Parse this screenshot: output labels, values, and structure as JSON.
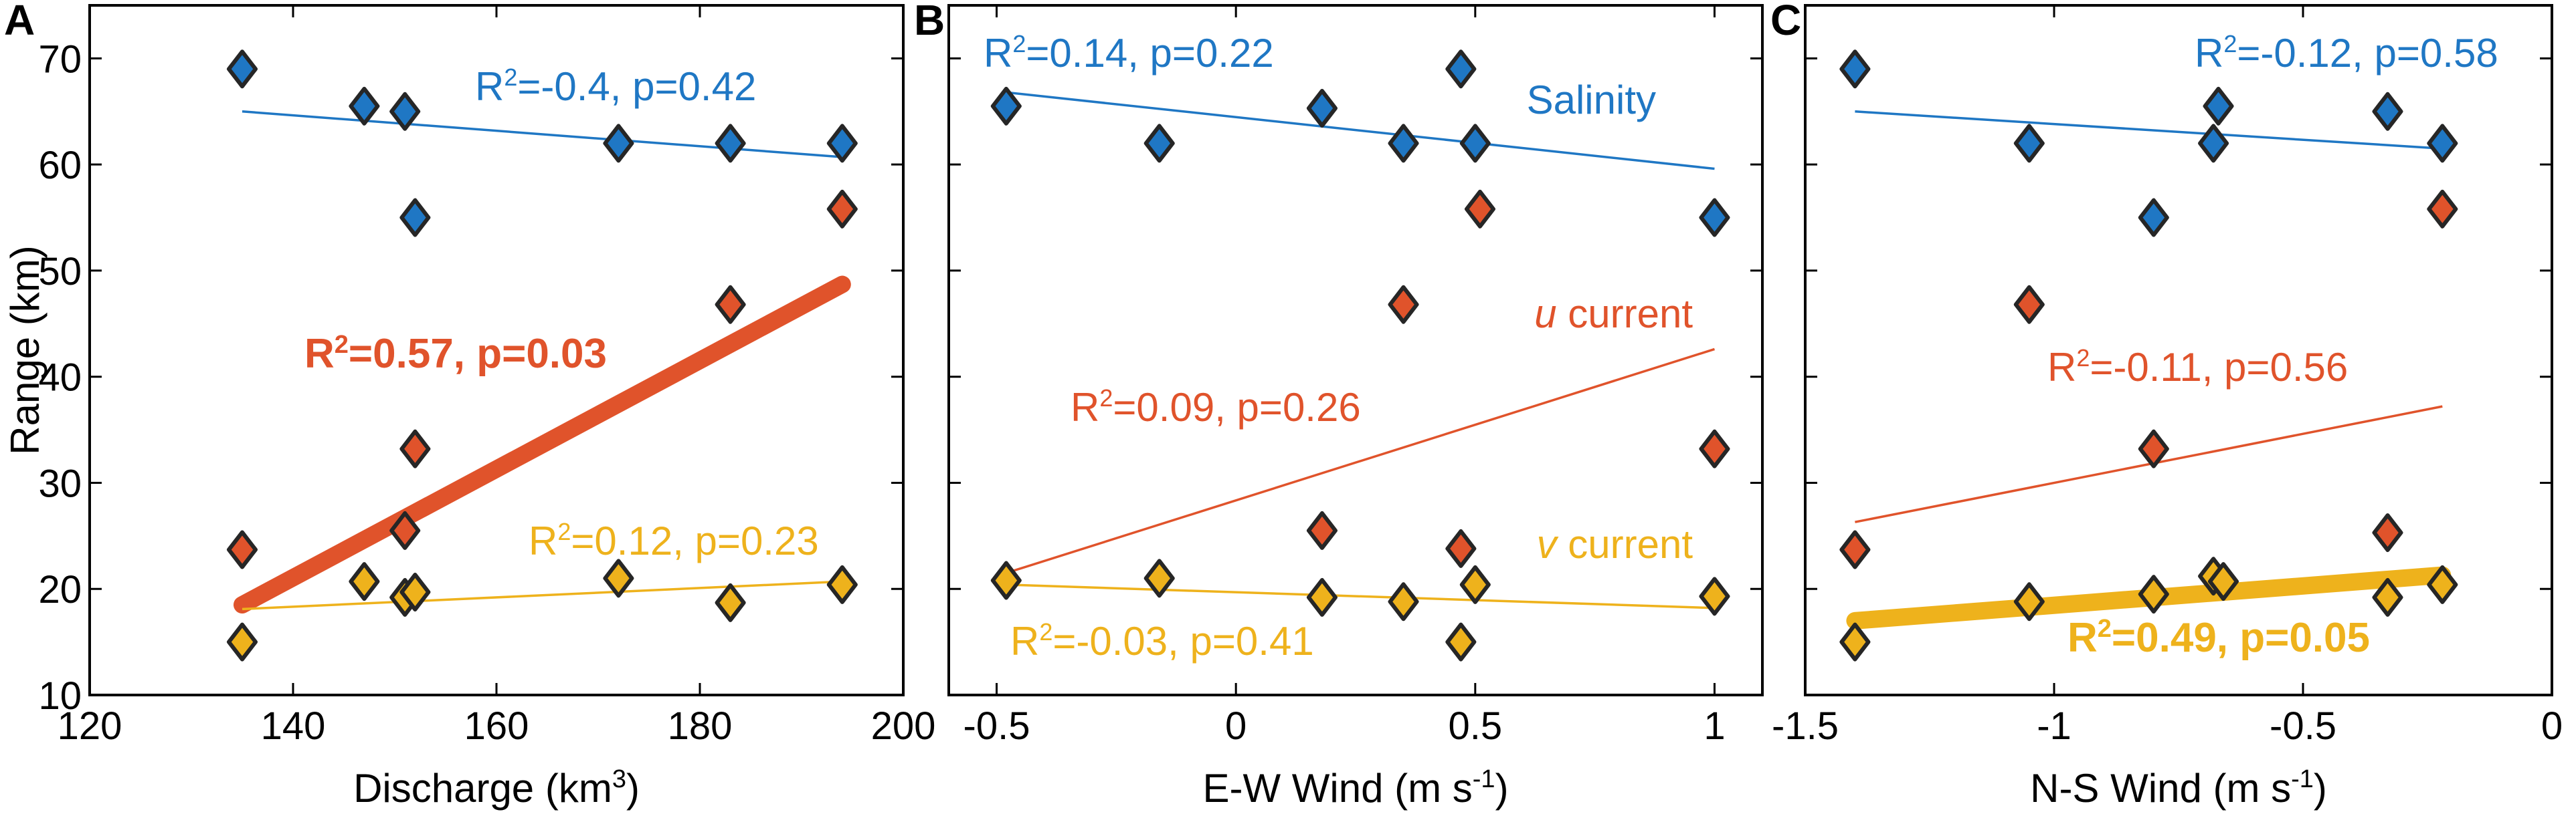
{
  "colors": {
    "blue": "#1f77c4",
    "orange": "#e0532b",
    "yellow": "#eeb21c",
    "axis": "#000000"
  },
  "shared": {
    "ylabel": "Range (km)",
    "ylim": [
      10,
      75
    ],
    "yticks": [
      10,
      20,
      30,
      40,
      50,
      60,
      70
    ]
  },
  "chart_data": [
    {
      "panel": "A",
      "type": "scatter",
      "xlabel": "Discharge (km",
      "xlabel_sup": "3",
      "xlabel_end": ")",
      "xlim": [
        120,
        200
      ],
      "xticks": [
        "120",
        "140",
        "160",
        "180",
        "200"
      ],
      "xtick_values": [
        120,
        140,
        160,
        180,
        200
      ],
      "series": [
        {
          "name": "Salinity",
          "color": "blue",
          "x": [
            135,
            147,
            151,
            152,
            172,
            183,
            194
          ],
          "y": [
            69,
            65.5,
            65,
            55,
            62,
            62,
            62
          ],
          "fit": {
            "x": [
              135,
              194
            ],
            "y": [
              65,
              60.7
            ],
            "weight": "thin"
          },
          "stat": {
            "r2": "-0.4",
            "p": "0.42"
          }
        },
        {
          "name": "u current",
          "color": "orange",
          "x": [
            135,
            151,
            152,
            183,
            194
          ],
          "y": [
            23.7,
            25.5,
            33.2,
            46.8,
            55.8
          ],
          "fit": {
            "x": [
              135,
              194
            ],
            "y": [
              18.5,
              48.7
            ],
            "weight": "thick"
          },
          "stat": {
            "r2": "0.57",
            "p": "0.03"
          }
        },
        {
          "name": "v current",
          "color": "yellow",
          "x": [
            135,
            147,
            151,
            152,
            172,
            183,
            194
          ],
          "y": [
            15,
            20.7,
            19.2,
            19.7,
            21,
            18.7,
            20.4
          ],
          "fit": {
            "x": [
              135,
              194
            ],
            "y": [
              18.1,
              20.7
            ],
            "weight": "thin"
          },
          "stat": {
            "r2": "0.12",
            "p": "0.23"
          }
        }
      ]
    },
    {
      "panel": "B",
      "type": "scatter",
      "xlabel": "E-W Wind (m s",
      "xlabel_sup": "-1",
      "xlabel_end": ")",
      "xlim": [
        -0.6,
        1.1
      ],
      "xticks": [
        "-0.5",
        "0",
        "0.5",
        "1"
      ],
      "xtick_values": [
        -0.5,
        0,
        0.5,
        1
      ],
      "series_labels": [
        "Salinity",
        "u current",
        "v current"
      ],
      "series": [
        {
          "name": "Salinity",
          "color": "blue",
          "x": [
            -0.48,
            -0.16,
            0.18,
            0.35,
            0.47,
            0.5,
            1.0
          ],
          "y": [
            65.5,
            62,
            65.3,
            62,
            69,
            62,
            55
          ],
          "fit": {
            "x": [
              -0.48,
              1.0
            ],
            "y": [
              66.8,
              59.6
            ],
            "weight": "thin"
          },
          "stat": {
            "r2": "0.14",
            "p": "0.22"
          }
        },
        {
          "name": "u current",
          "color": "orange",
          "x": [
            0.18,
            0.35,
            0.47,
            0.51,
            1.0
          ],
          "y": [
            25.5,
            46.8,
            23.8,
            55.8,
            33.2
          ],
          "fit": {
            "x": [
              -0.48,
              1.0
            ],
            "y": [
              21.5,
              42.6
            ],
            "weight": "thin"
          },
          "stat": {
            "r2": "0.09",
            "p": "0.26"
          }
        },
        {
          "name": "v current",
          "color": "yellow",
          "x": [
            -0.48,
            -0.16,
            0.18,
            0.35,
            0.47,
            0.5,
            1.0
          ],
          "y": [
            20.8,
            21,
            19.2,
            18.8,
            15,
            20.4,
            19.3
          ],
          "fit": {
            "x": [
              -0.48,
              1.0
            ],
            "y": [
              20.4,
              18.2
            ],
            "weight": "thin"
          },
          "stat": {
            "r2": "-0.03",
            "p": "0.41"
          }
        }
      ]
    },
    {
      "panel": "C",
      "type": "scatter",
      "xlabel": "N-S Wind (m s",
      "xlabel_sup": "-1",
      "xlabel_end": ")",
      "xlim": [
        -1.5,
        0
      ],
      "xticks": [
        "-1.5",
        "-1",
        "-0.5",
        "0"
      ],
      "xtick_values": [
        -1.5,
        -1,
        -0.5,
        0
      ],
      "series": [
        {
          "name": "Salinity",
          "color": "blue",
          "x": [
            -1.4,
            -1.05,
            -0.8,
            -0.68,
            -0.67,
            -0.33,
            -0.22
          ],
          "y": [
            69,
            62,
            55,
            62,
            65.5,
            65,
            62
          ],
          "fit": {
            "x": [
              -1.4,
              -0.22
            ],
            "y": [
              65,
              61.5
            ],
            "weight": "thin"
          },
          "stat": {
            "r2": "-0.12",
            "p": "0.58"
          }
        },
        {
          "name": "u current",
          "color": "orange",
          "x": [
            -1.4,
            -1.05,
            -0.8,
            -0.33,
            -0.22
          ],
          "y": [
            23.7,
            46.8,
            33.2,
            25.3,
            55.8
          ],
          "fit": {
            "x": [
              -1.4,
              -0.22
            ],
            "y": [
              26.3,
              37.2
            ],
            "weight": "thin"
          },
          "stat": {
            "r2": "-0.11",
            "p": "0.56"
          }
        },
        {
          "name": "v current",
          "color": "yellow",
          "x": [
            -1.4,
            -1.05,
            -0.8,
            -0.68,
            -0.66,
            -0.33,
            -0.22
          ],
          "y": [
            15,
            18.8,
            19.5,
            21.2,
            20.7,
            19.2,
            20.4
          ],
          "fit": {
            "x": [
              -1.4,
              -0.22
            ],
            "y": [
              17,
              21.3
            ],
            "weight": "thick"
          },
          "stat": {
            "r2": "0.49",
            "p": "0.05"
          }
        }
      ]
    }
  ]
}
